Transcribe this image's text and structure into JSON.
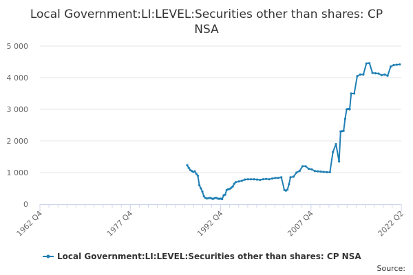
{
  "chart_data": {
    "type": "line",
    "title_lines": [
      "Local Government:LI:LEVEL:Securities other than shares: CP",
      "NSA"
    ],
    "x_ticks": [
      "1962 Q4",
      "1977 Q4",
      "1992 Q4",
      "2007 Q4",
      "2022 Q2"
    ],
    "y_ticks": [
      "0",
      "1 000",
      "2 000",
      "3 000",
      "4 000",
      "5 000"
    ],
    "ylim": [
      0,
      5000
    ],
    "xlim": [
      1962.75,
      2022.25
    ],
    "grid": true,
    "legend_position": "bottom",
    "credit": "Source:",
    "series": [
      {
        "name": "Local Government:LI:LEVEL:Securities other than shares: CP NSA",
        "color": "#1f7fb4",
        "x": [
          1987.0,
          1987.25,
          1987.5,
          1987.75,
          1988.0,
          1988.25,
          1988.5,
          1988.75,
          1989.0,
          1989.25,
          1989.5,
          1989.75,
          1990.0,
          1990.25,
          1990.5,
          1990.75,
          1991.0,
          1991.25,
          1991.5,
          1991.75,
          1992.0,
          1992.25,
          1992.5,
          1992.75,
          1993.0,
          1993.25,
          1993.5,
          1993.75,
          1994.0,
          1994.25,
          1994.5,
          1994.75,
          1995.0,
          1995.5,
          1996.0,
          1996.5,
          1997.0,
          1997.5,
          1998.0,
          1998.5,
          1999.0,
          1999.5,
          2000.0,
          2000.5,
          2001.0,
          2001.5,
          2002.0,
          2002.5,
          2003.0,
          2003.25,
          2003.5,
          2003.75,
          2004.0,
          2004.5,
          2005.0,
          2005.5,
          2006.0,
          2006.5,
          2007.0,
          2007.5,
          2008.0,
          2008.5,
          2009.0,
          2009.5,
          2010.0,
          2010.5,
          2011.0,
          2011.5,
          2012.0,
          2012.25,
          2012.5,
          2012.75,
          2013.0,
          2013.25,
          2013.5,
          2013.75,
          2014.0,
          2014.5,
          2015.0,
          2015.5,
          2016.0,
          2016.5,
          2017.0,
          2017.5,
          2018.0,
          2018.5,
          2019.0,
          2019.5,
          2020.0,
          2020.5,
          2021.0,
          2021.5,
          2022.0
        ],
        "y": [
          1230,
          1150,
          1080,
          1050,
          1020,
          1040,
          960,
          900,
          600,
          500,
          400,
          250,
          200,
          180,
          190,
          200,
          180,
          170,
          190,
          200,
          180,
          170,
          175,
          160,
          280,
          300,
          450,
          470,
          480,
          520,
          560,
          650,
          700,
          720,
          740,
          780,
          790,
          790,
          790,
          780,
          770,
          790,
          800,
          790,
          810,
          830,
          830,
          850,
          450,
          430,
          460,
          630,
          850,
          870,
          1000,
          1050,
          1200,
          1200,
          1120,
          1100,
          1050,
          1040,
          1030,
          1020,
          1010,
          1010,
          1650,
          1900,
          1350,
          2300,
          2310,
          2320,
          2700,
          3000,
          3010,
          3000,
          3500,
          3500,
          4050,
          4100,
          4100,
          4450,
          4460,
          4150,
          4140,
          4130,
          4080,
          4100,
          4060,
          4350,
          4400,
          4410,
          4420
        ]
      }
    ]
  }
}
